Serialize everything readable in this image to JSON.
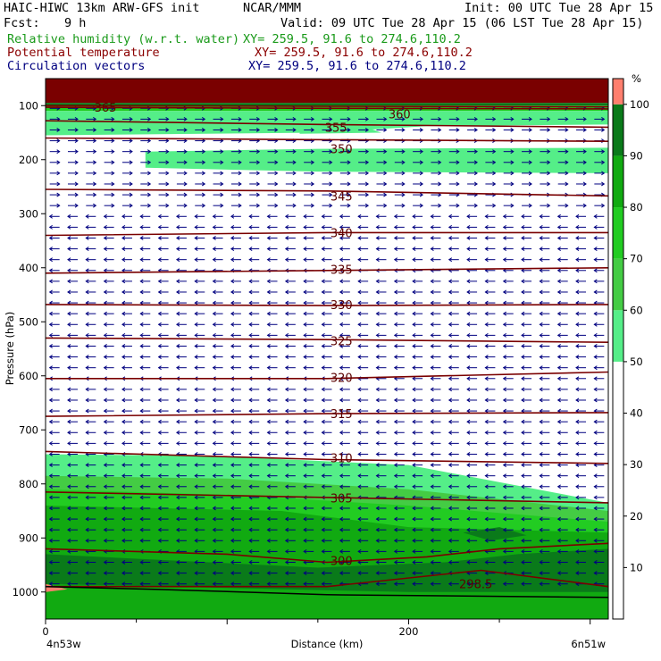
{
  "header": {
    "title": "HAIC-HIWC 13km ARW-GFS init",
    "org": "NCAR/MMM",
    "init": "Init: 00 UTC Tue 28 Apr 15",
    "fcst_label": "Fcst:",
    "fcst_value": "9 h",
    "valid": "Valid: 09 UTC Tue 28 Apr 15 (06 LST Tue 28 Apr 15)",
    "fields": [
      {
        "name": "Relative humidity (w.r.t. water)",
        "xy": "XY= 259.5, 91.6 to 274.6,110.2",
        "color": "#1a9a1a"
      },
      {
        "name": "Potential temperature",
        "xy": "XY= 259.5, 91.6 to 274.6,110.2",
        "color": "#8b0000"
      },
      {
        "name": "Circulation vectors",
        "xy": "XY= 259.5, 91.6 to 274.6,110.2",
        "color": "#000080"
      }
    ]
  },
  "chart_data": {
    "type": "heatmap",
    "description_fields": [
      "Relative humidity (w.r.t. water)",
      "Potential temperature",
      "Circulation vectors"
    ],
    "y_axis": {
      "label": "Pressure (hPa)",
      "ticks": [
        "100",
        "200",
        "300",
        "400",
        "500",
        "600",
        "700",
        "800",
        "900",
        "1000"
      ],
      "range": [
        1050,
        50
      ],
      "scale": "linear"
    },
    "x_axis": {
      "label": "Distance (km)",
      "ticks": [
        "0",
        "200"
      ],
      "range": [
        0,
        310
      ],
      "start_label": "4n53w",
      "end_label": "6n51w"
    },
    "colorbar": {
      "unit": "%",
      "ticks": [
        "10",
        "20",
        "30",
        "40",
        "50",
        "60",
        "70",
        "80",
        "90",
        "100"
      ],
      "levels": [
        0,
        50,
        60,
        70,
        80,
        90,
        100,
        105
      ],
      "colors": [
        "#ffffff",
        "#55ee88",
        "#44cc44",
        "#22cc22",
        "#11aa11",
        "#0a7a1a",
        "#ff7f6e"
      ]
    },
    "rh_regions": [
      {
        "level": "100+",
        "color": "#7a0000",
        "poly": [
          [
            0,
            50
          ],
          [
            310,
            50
          ],
          [
            310,
            95
          ],
          [
            0,
            95
          ]
        ]
      },
      {
        "level": "90",
        "color": "#0a7a1a",
        "poly": [
          [
            0,
            95
          ],
          [
            310,
            95
          ],
          [
            310,
            100
          ],
          [
            0,
            100
          ]
        ]
      },
      {
        "level": "80",
        "color": "#22cc22",
        "poly": [
          [
            0,
            100
          ],
          [
            310,
            100
          ],
          [
            310,
            110
          ],
          [
            0,
            110
          ]
        ]
      },
      {
        "level": "60",
        "color": "#55ee88",
        "poly": [
          [
            0,
            110
          ],
          [
            310,
            110
          ],
          [
            310,
            135
          ],
          [
            210,
            138
          ],
          [
            150,
            150
          ],
          [
            0,
            155
          ]
        ]
      },
      {
        "level": "50",
        "color": "#55ee88",
        "poly": [
          [
            140,
            140
          ],
          [
            175,
            138
          ],
          [
            185,
            150
          ],
          [
            140,
            152
          ]
        ]
      },
      {
        "level": "50",
        "color": "#55ee88",
        "poly": [
          [
            55,
            185
          ],
          [
            150,
            180
          ],
          [
            310,
            178
          ],
          [
            310,
            225
          ],
          [
            150,
            222
          ],
          [
            55,
            215
          ]
        ]
      },
      {
        "level": "50",
        "color": "#55ee88",
        "poly": [
          [
            0,
            745
          ],
          [
            90,
            748
          ],
          [
            200,
            765
          ],
          [
            310,
            835
          ],
          [
            310,
            1050
          ],
          [
            0,
            1050
          ]
        ]
      },
      {
        "level": "60",
        "color": "#44cc44",
        "poly": [
          [
            0,
            785
          ],
          [
            100,
            790
          ],
          [
            200,
            810
          ],
          [
            310,
            850
          ],
          [
            310,
            1050
          ],
          [
            0,
            1050
          ]
        ]
      },
      {
        "level": "70",
        "color": "#22cc22",
        "poly": [
          [
            0,
            810
          ],
          [
            100,
            820
          ],
          [
            200,
            840
          ],
          [
            310,
            870
          ],
          [
            310,
            1050
          ],
          [
            0,
            1050
          ]
        ]
      },
      {
        "level": "80",
        "color": "#11aa11",
        "poly": [
          [
            0,
            840
          ],
          [
            130,
            850
          ],
          [
            200,
            880
          ],
          [
            310,
            890
          ],
          [
            310,
            1050
          ],
          [
            0,
            1050
          ]
        ]
      },
      {
        "level": "90",
        "color": "#0a7a1a",
        "poly": [
          [
            0,
            930
          ],
          [
            60,
            940
          ],
          [
            150,
            955
          ],
          [
            220,
            945
          ],
          [
            260,
            930
          ],
          [
            310,
            920
          ],
          [
            310,
            1000
          ],
          [
            200,
            1000
          ],
          [
            0,
            985
          ]
        ]
      },
      {
        "level": "90",
        "color": "#0a7a1a",
        "poly": [
          [
            230,
            890
          ],
          [
            250,
            880
          ],
          [
            265,
            895
          ],
          [
            245,
            905
          ]
        ]
      },
      {
        "level": "100+",
        "color": "#ff7f6e",
        "poly": [
          [
            0,
            985
          ],
          [
            12,
            995
          ],
          [
            0,
            1000
          ]
        ]
      }
    ],
    "theta_contours": [
      {
        "label": "365",
        "points": [
          [
            0,
            100
          ],
          [
            155,
            101
          ],
          [
            310,
            102
          ]
        ],
        "label_at": [
          33,
          103
        ]
      },
      {
        "label": "360",
        "points": [
          [
            0,
            103
          ],
          [
            155,
            105
          ],
          [
            310,
            106
          ]
        ],
        "label_at": [
          195,
          115
        ]
      },
      {
        "label": "355",
        "points": [
          [
            0,
            128
          ],
          [
            155,
            135
          ],
          [
            310,
            140
          ]
        ],
        "label_at": [
          160,
          140
        ]
      },
      {
        "label": "350",
        "points": [
          [
            0,
            160
          ],
          [
            155,
            163
          ],
          [
            310,
            166
          ]
        ],
        "label_at": [
          163,
          180
        ]
      },
      {
        "label": "345",
        "points": [
          [
            0,
            255
          ],
          [
            155,
            258
          ],
          [
            310,
            267
          ]
        ],
        "label_at": [
          163,
          267
        ]
      },
      {
        "label": "340",
        "points": [
          [
            0,
            340
          ],
          [
            155,
            335
          ],
          [
            310,
            335
          ]
        ],
        "label_at": [
          163,
          335
        ]
      },
      {
        "label": "335",
        "points": [
          [
            0,
            410
          ],
          [
            155,
            405
          ],
          [
            310,
            400
          ]
        ],
        "label_at": [
          163,
          403
        ]
      },
      {
        "label": "330",
        "points": [
          [
            0,
            468
          ],
          [
            155,
            470
          ],
          [
            310,
            468
          ]
        ],
        "label_at": [
          163,
          468
        ]
      },
      {
        "label": "325",
        "points": [
          [
            0,
            530
          ],
          [
            155,
            533
          ],
          [
            310,
            538
          ]
        ],
        "label_at": [
          163,
          535
        ]
      },
      {
        "label": "320",
        "points": [
          [
            0,
            605
          ],
          [
            155,
            605
          ],
          [
            310,
            593
          ]
        ],
        "label_at": [
          163,
          603
        ]
      },
      {
        "label": "315",
        "points": [
          [
            0,
            675
          ],
          [
            155,
            670
          ],
          [
            310,
            668
          ]
        ],
        "label_at": [
          163,
          670
        ]
      },
      {
        "label": "310",
        "points": [
          [
            0,
            740
          ],
          [
            155,
            755
          ],
          [
            310,
            762
          ]
        ],
        "label_at": [
          163,
          752
        ]
      },
      {
        "label": "305",
        "points": [
          [
            0,
            815
          ],
          [
            155,
            825
          ],
          [
            310,
            835
          ]
        ],
        "label_at": [
          163,
          826
        ]
      },
      {
        "label": "300",
        "points": [
          [
            0,
            920
          ],
          [
            100,
            930
          ],
          [
            155,
            945
          ],
          [
            210,
            935
          ],
          [
            250,
            920
          ],
          [
            310,
            910
          ]
        ],
        "label_at": [
          163,
          942
        ]
      },
      {
        "label": "298.5",
        "points": [
          [
            0,
            990
          ],
          [
            155,
            990
          ],
          [
            240,
            960
          ],
          [
            310,
            990
          ]
        ],
        "label_at": [
          237,
          985
        ]
      }
    ],
    "surface_line": [
      [
        0,
        990
      ],
      [
        60,
        995
      ],
      [
        155,
        1005
      ],
      [
        310,
        1010
      ]
    ],
    "vectors_upper": {
      "p_range": [
        100,
        300
      ],
      "direction": "east",
      "color": "#000080"
    },
    "vectors_lower": {
      "p_range": [
        330,
        1000
      ],
      "direction": "west",
      "color": "#000080"
    }
  }
}
